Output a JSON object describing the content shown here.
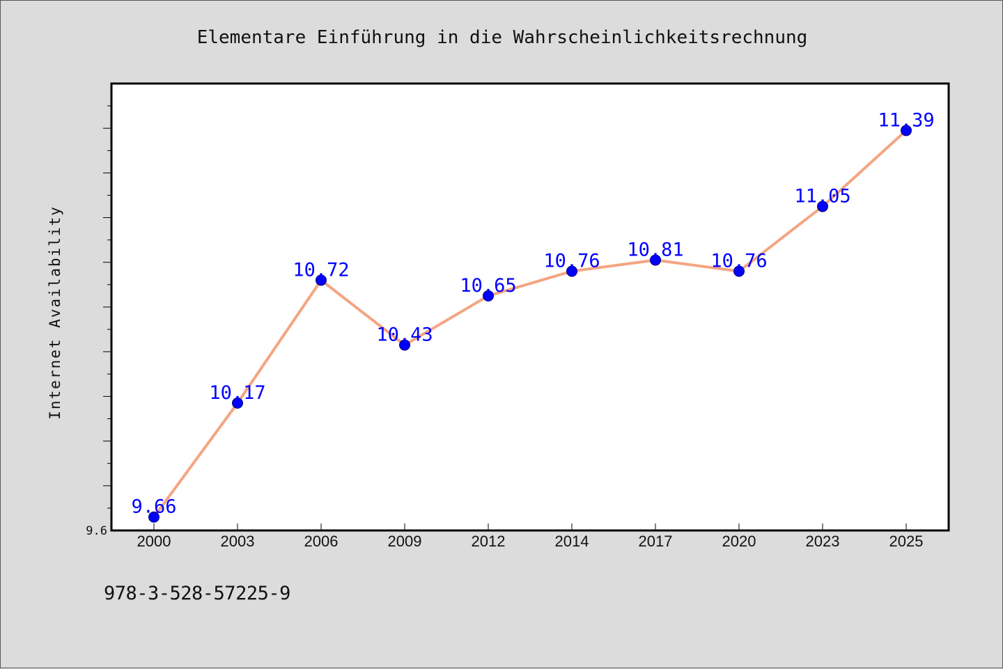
{
  "chart_data": {
    "type": "line",
    "title": "Elementare Einführung in die Wahrscheinlichkeitsrechnung",
    "xlabel": "",
    "ylabel": "Internet Availability",
    "categories": [
      "2000",
      "2003",
      "2006",
      "2009",
      "2012",
      "2014",
      "2017",
      "2020",
      "2023",
      "2025"
    ],
    "series": [
      {
        "values": [
          9.66,
          10.17,
          10.72,
          10.43,
          10.65,
          10.76,
          10.81,
          10.76,
          11.05,
          11.39
        ],
        "labels": [
          "9.66",
          "10.17",
          "10.72",
          "10.43",
          "10.65",
          "10.76",
          "10.81",
          "10.76",
          "11.05",
          "11.39"
        ]
      }
    ],
    "ylim": [
      9.6,
      11.6
    ],
    "ytick_labels": [
      "9.6"
    ],
    "grid": false,
    "colors": {
      "line": "#f4a582",
      "marker": "#0000ff",
      "label": "#0000ff",
      "plot_bg": "#ffffff",
      "page_bg": "#dcdcdc"
    }
  },
  "footer": {
    "isbn": "978-3-528-57225-9"
  }
}
